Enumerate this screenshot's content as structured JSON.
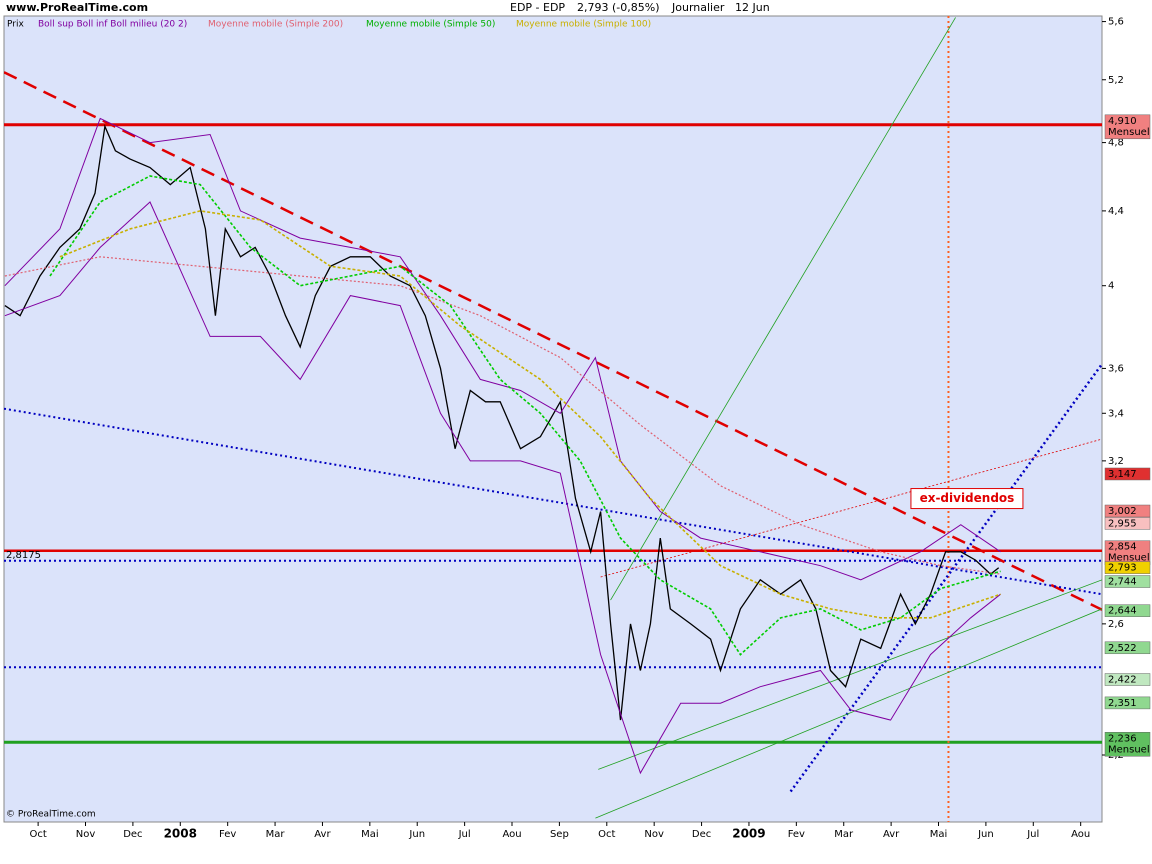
{
  "header": {
    "site": "www.ProRealTime.com",
    "instrument": "EDP - EDP",
    "last": "2,793 (-0,85%)",
    "period": "Journalier",
    "date": "12 Jun"
  },
  "footer": "© ProRealTime.com",
  "legend_items": [
    "Prix",
    "Boll sup Boll inf Boll milieu (20 2)",
    "Moyenne mobile (Simple 200)",
    "Moyenne mobile (Simple 50)",
    "Moyenne mobile (Simple 100)"
  ],
  "chart_data": {
    "type": "line",
    "log_scale": true,
    "xlim": [
      -0.72,
      22.45
    ],
    "ylim": [
      2.02,
      5.64
    ],
    "xticks": [
      {
        "value": 0,
        "label": "Oct"
      },
      {
        "value": 1,
        "label": "Nov"
      },
      {
        "value": 2,
        "label": "Dec"
      },
      {
        "value": 3,
        "label": "2008"
      },
      {
        "value": 4,
        "label": "Fev"
      },
      {
        "value": 5,
        "label": "Mar"
      },
      {
        "value": 6,
        "label": "Avr"
      },
      {
        "value": 7,
        "label": "Mai"
      },
      {
        "value": 8,
        "label": "Jun"
      },
      {
        "value": 9,
        "label": "Jul"
      },
      {
        "value": 10,
        "label": "Aou"
      },
      {
        "value": 11,
        "label": "Sep"
      },
      {
        "value": 12,
        "label": "Oct"
      },
      {
        "value": 13,
        "label": "Nov"
      },
      {
        "value": 14,
        "label": "Dec"
      },
      {
        "value": 15,
        "label": "2009"
      },
      {
        "value": 16,
        "label": "Fev"
      },
      {
        "value": 17,
        "label": "Mar"
      },
      {
        "value": 18,
        "label": "Avr"
      },
      {
        "value": 19,
        "label": "Mai"
      },
      {
        "value": 20,
        "label": "Jun"
      },
      {
        "value": 21,
        "label": "Jul"
      },
      {
        "value": 22,
        "label": "Aou"
      }
    ],
    "yticks": [
      {
        "value": 5.6,
        "label": "5,6"
      },
      {
        "value": 5.2,
        "label": "5,2"
      },
      {
        "value": 4.8,
        "label": "4,8"
      },
      {
        "value": 4.4,
        "label": "4,4"
      },
      4,
      {
        "value": 3.6,
        "label": "3,6"
      },
      {
        "value": 3.4,
        "label": "3,4"
      },
      {
        "value": 3.2,
        "label": "3,2"
      },
      {
        "value": 2.6,
        "label": "2,6"
      },
      {
        "value": 2.2,
        "label": "2,2"
      }
    ],
    "series": [
      {
        "name": "Prix",
        "color": "#000000",
        "width": 1.3,
        "x": [
          -0.7,
          -0.38,
          0.04,
          0.46,
          0.88,
          1.2,
          1.41,
          1.63,
          1.94,
          2.36,
          2.79,
          3.21,
          3.53,
          3.74,
          3.95,
          4.27,
          4.58,
          4.9,
          5.22,
          5.53,
          5.85,
          6.17,
          6.59,
          7.01,
          7.43,
          7.85,
          8.17,
          8.49,
          8.8,
          9.12,
          9.44,
          9.75,
          10.18,
          10.6,
          11.02,
          11.34,
          11.66,
          11.87,
          12.08,
          12.29,
          12.5,
          12.71,
          12.92,
          13.13,
          13.34,
          13.77,
          14.19,
          14.4,
          14.82,
          15.24,
          15.67,
          16.09,
          16.41,
          16.72,
          17.04,
          17.36,
          17.78,
          18.2,
          18.51,
          18.83,
          19.15,
          19.47,
          19.78,
          20.1,
          20.27
        ],
        "values": [
          3.9,
          3.85,
          4.05,
          4.2,
          4.3,
          4.5,
          4.9,
          4.75,
          4.7,
          4.65,
          4.55,
          4.65,
          4.3,
          3.85,
          4.3,
          4.15,
          4.2,
          4.05,
          3.85,
          3.7,
          3.95,
          4.1,
          4.15,
          4.15,
          4.05,
          4.0,
          3.85,
          3.6,
          3.25,
          3.5,
          3.45,
          3.45,
          3.25,
          3.3,
          3.45,
          3.05,
          2.85,
          3.0,
          2.6,
          2.3,
          2.6,
          2.45,
          2.6,
          2.9,
          2.65,
          2.6,
          2.55,
          2.45,
          2.65,
          2.75,
          2.7,
          2.75,
          2.65,
          2.45,
          2.4,
          2.55,
          2.52,
          2.7,
          2.6,
          2.7,
          2.85,
          2.85,
          2.82,
          2.77,
          2.793
        ]
      },
      {
        "name": "Boll sup",
        "color": "#8000a0",
        "width": 1,
        "x": [
          -0.7,
          0.46,
          1.31,
          2.36,
          3.63,
          4.27,
          5.53,
          6.59,
          7.64,
          8.49,
          9.33,
          10.18,
          11.02,
          11.76,
          12.29,
          13.13,
          13.98,
          15.24,
          16.51,
          17.36,
          18.62,
          19.47,
          20.31
        ],
        "values": [
          4.0,
          4.3,
          4.95,
          4.8,
          4.85,
          4.4,
          4.25,
          4.2,
          4.15,
          3.85,
          3.55,
          3.5,
          3.4,
          3.65,
          3.2,
          3.0,
          2.9,
          2.85,
          2.8,
          2.75,
          2.85,
          2.95,
          2.85
        ]
      },
      {
        "name": "Boll inf",
        "color": "#8000a0",
        "width": 1,
        "x": [
          -0.7,
          0.46,
          1.31,
          2.36,
          3.63,
          4.69,
          5.53,
          6.59,
          7.64,
          8.49,
          9.12,
          10.18,
          11.02,
          11.87,
          12.71,
          13.56,
          14.4,
          15.24,
          16.51,
          17.15,
          17.99,
          18.83,
          19.68,
          20.31
        ],
        "values": [
          3.85,
          3.95,
          4.2,
          4.45,
          3.75,
          3.75,
          3.55,
          3.95,
          3.9,
          3.4,
          3.2,
          3.2,
          3.15,
          2.5,
          2.15,
          2.35,
          2.35,
          2.4,
          2.45,
          2.33,
          2.3,
          2.5,
          2.62,
          2.7
        ]
      },
      {
        "name": "Moyenne mobile (Simple 200)",
        "color": "#e06070",
        "width": 1.2,
        "dash": "2,2",
        "x": [
          -0.7,
          1.31,
          3.42,
          5.53,
          7.64,
          9.33,
          11.02,
          12.71,
          14.4,
          16.09,
          17.78,
          19.05,
          20.31
        ],
        "values": [
          4.05,
          4.15,
          4.1,
          4.05,
          4.0,
          3.85,
          3.65,
          3.35,
          3.1,
          2.95,
          2.85,
          2.8,
          2.77
        ]
      },
      {
        "name": "Moyenne mobile (Simple 50)",
        "color": "#00cc00",
        "width": 1.6,
        "dash": "3,2",
        "x": [
          0.25,
          1.31,
          2.36,
          3.42,
          4.48,
          5.53,
          6.59,
          7.64,
          8.7,
          9.75,
          10.6,
          11.44,
          12.29,
          13.13,
          14.19,
          14.82,
          15.67,
          16.51,
          17.36,
          18.2,
          19.05,
          20.31
        ],
        "values": [
          4.05,
          4.45,
          4.6,
          4.55,
          4.2,
          4.0,
          4.05,
          4.1,
          3.9,
          3.55,
          3.4,
          3.2,
          2.9,
          2.75,
          2.65,
          2.5,
          2.62,
          2.65,
          2.58,
          2.62,
          2.72,
          2.78
        ]
      },
      {
        "name": "Moyenne mobile (Simple 100)",
        "color": "#c8b000",
        "width": 1.6,
        "dash": "3,2",
        "x": [
          0.46,
          1.94,
          3.42,
          4.69,
          6.17,
          7.64,
          8.91,
          10.6,
          11.87,
          12.92,
          14.4,
          15.67,
          16.72,
          17.78,
          18.83,
          20.31
        ],
        "values": [
          4.15,
          4.3,
          4.4,
          4.35,
          4.1,
          4.05,
          3.8,
          3.55,
          3.3,
          3.05,
          2.8,
          2.7,
          2.65,
          2.62,
          2.62,
          2.7
        ]
      }
    ],
    "horizontal_lines": [
      {
        "value": 4.91,
        "color": "#e00000",
        "width": 3
      },
      {
        "value": 2.854,
        "color": "#e00000",
        "width": 2.5
      },
      {
        "value": 2.8175,
        "label": "2,8175",
        "color": "#0000c0",
        "width": 2,
        "dash": "2,3"
      },
      {
        "value": 2.46,
        "color": "#0000c0",
        "width": 2,
        "dash": "2,3"
      },
      {
        "value": 2.236,
        "color": "#20a020",
        "width": 3
      }
    ],
    "trend_lines": [
      {
        "x": [
          -0.72,
          22.45
        ],
        "y": [
          5.25,
          2.647
        ],
        "color": "#e00000",
        "width": 2.5,
        "dash": "14,8"
      },
      {
        "x": [
          -0.72,
          22.45
        ],
        "y": [
          3.42,
          2.7
        ],
        "color": "#0000c0",
        "width": 2,
        "dash": "2,3"
      },
      {
        "x": [
          15.88,
          22.45
        ],
        "y": [
          2.1,
          3.62
        ],
        "color": "#0000c0",
        "width": 2.5,
        "dash": "2,3"
      },
      {
        "x": [
          12.08,
          19.36
        ],
        "y": [
          2.68,
          5.63
        ],
        "color": "#20a020",
        "width": 0.8
      },
      {
        "x": [
          11.76,
          22.45
        ],
        "y": [
          2.03,
          2.65
        ],
        "color": "#20a020",
        "width": 0.8
      },
      {
        "x": [
          11.82,
          22.45
        ],
        "y": [
          2.16,
          2.75
        ],
        "color": "#20a020",
        "width": 0.8
      },
      {
        "x": [
          11.87,
          22.45
        ],
        "y": [
          2.76,
          3.29
        ],
        "color": "#e00000",
        "width": 0.8,
        "dash": "2,2"
      }
    ],
    "vertical_lines": [
      {
        "x": 19.21,
        "color": "#ff6020",
        "width": 2,
        "dash": "2,3"
      }
    ],
    "annotations": [
      {
        "text": "ex-dividendos",
        "x": 19.6,
        "y": 3.05,
        "color": "#e00000"
      }
    ],
    "price_tags": [
      {
        "value": 4.91,
        "label": "4,910",
        "note": "Mensuel",
        "color": "#f08080"
      },
      {
        "value": 3.147,
        "label": "3,147",
        "color": "#e03030"
      },
      {
        "value": 3.002,
        "label": "3,002",
        "color": "#f08080"
      },
      {
        "value": 2.955,
        "label": "2,955",
        "color": "#f8c0c0"
      },
      {
        "value": 2.854,
        "label": "2,854",
        "note": "Mensuel",
        "color": "#f08080"
      },
      {
        "value": 2.793,
        "label": "2,793",
        "color": "#f0d000"
      },
      {
        "value": 2.744,
        "label": "2,744",
        "color": "#a0e0a0"
      },
      {
        "value": 2.644,
        "label": "2,644",
        "color": "#90d890"
      },
      {
        "value": 2.522,
        "label": "2,522",
        "color": "#90d890"
      },
      {
        "value": 2.422,
        "label": "2,422",
        "color": "#c0e8c0"
      },
      {
        "value": 2.351,
        "label": "2,351",
        "color": "#90d890"
      },
      {
        "value": 2.236,
        "label": "2,236",
        "note": "Mensuel",
        "color": "#60c060"
      }
    ]
  }
}
